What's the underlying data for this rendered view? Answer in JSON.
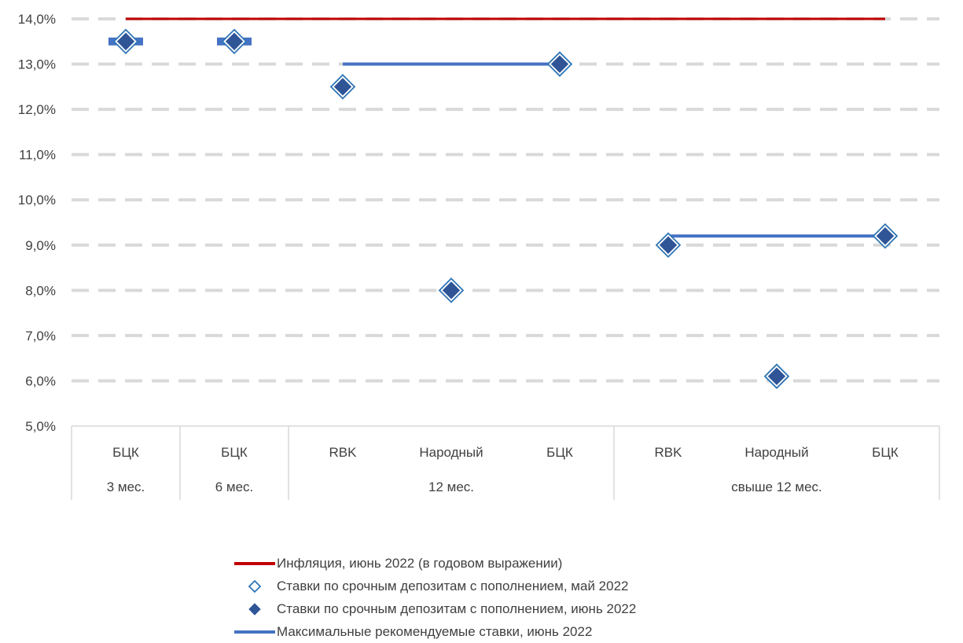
{
  "chart_data": {
    "type": "scatter",
    "ylim": [
      5.0,
      14.0
    ],
    "y_ticks": [
      "5,0%",
      "6,0%",
      "7,0%",
      "8,0%",
      "9,0%",
      "10,0%",
      "11,0%",
      "12,0%",
      "13,0%",
      "14,0%"
    ],
    "categories": [
      "БЦК",
      "БЦК",
      "RBK",
      "Народный",
      "БЦК",
      "RBK",
      "Народный",
      "БЦК"
    ],
    "groups": [
      {
        "label": "3 мес.",
        "from": 0,
        "to": 0
      },
      {
        "label": "6 мес.",
        "from": 1,
        "to": 1
      },
      {
        "label": "12 мес.",
        "from": 2,
        "to": 4
      },
      {
        "label": "свыше 12 мес.",
        "from": 5,
        "to": 7
      }
    ],
    "grid": true,
    "legend_position": "bottom",
    "series": [
      {
        "name": "Инфляция, июнь 2022 (в годовом выражении)",
        "kind": "line",
        "color": "#C00000",
        "values": [
          14.0,
          14.0,
          14.0,
          14.0,
          14.0,
          14.0,
          14.0,
          14.0
        ]
      },
      {
        "name": "Ставки по срочным депозитам с пополнением, май 2022",
        "kind": "marker-open",
        "color": "#2E75B6",
        "values": [
          13.5,
          13.5,
          12.5,
          8.0,
          13.0,
          9.0,
          6.1,
          9.2
        ]
      },
      {
        "name": "Ставки по срочным депозитам с пополнением, июнь 2022",
        "kind": "marker-filled",
        "color": "#2F5597",
        "values": [
          13.5,
          13.5,
          12.5,
          8.0,
          13.0,
          9.0,
          6.1,
          9.2
        ]
      },
      {
        "name": "Максимальные рекомендуемые ставки, июнь 2022",
        "kind": "line",
        "color": "#4472C4",
        "values": [
          13.5,
          13.5,
          13.0,
          13.0,
          13.0,
          9.2,
          9.2,
          9.2
        ],
        "segments": [
          [
            0,
            0
          ],
          [
            1,
            1
          ],
          [
            2,
            4
          ],
          [
            5,
            7
          ]
        ]
      }
    ]
  }
}
